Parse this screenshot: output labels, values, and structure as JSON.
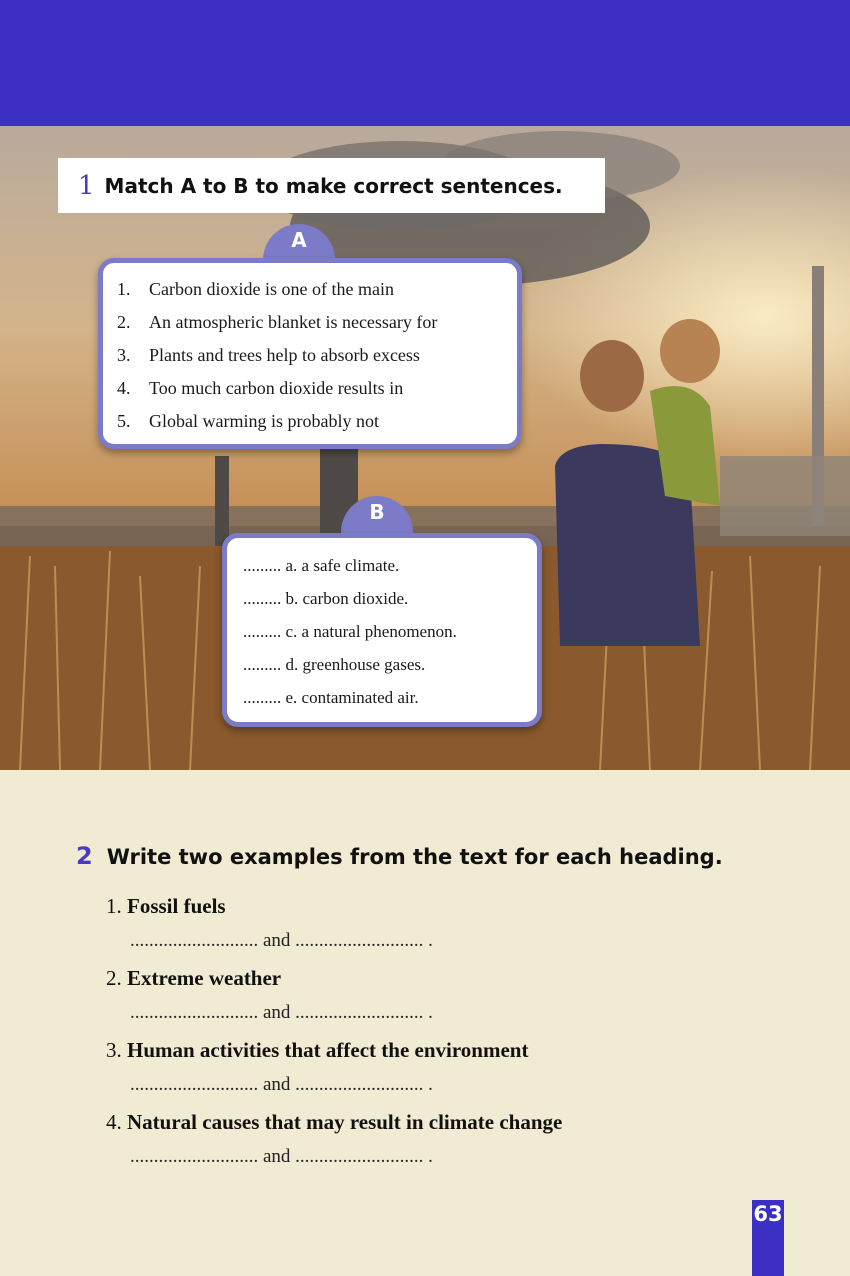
{
  "exercise1": {
    "number": "1",
    "instruction": "Match A to B to make correct sentences.",
    "column_a": {
      "label": "A",
      "items": [
        {
          "num": "1.",
          "text": "Carbon dioxide is one of the main"
        },
        {
          "num": "2.",
          "text": "An atmospheric blanket is necessary for"
        },
        {
          "num": "3.",
          "text": "Plants and trees help to absorb excess"
        },
        {
          "num": "4.",
          "text": "Too much carbon dioxide results in"
        },
        {
          "num": "5.",
          "text": "Global warming is probably not"
        }
      ]
    },
    "column_b": {
      "label": "B",
      "items": [
        {
          "blank": ".........",
          "text": "a. a safe climate."
        },
        {
          "blank": ".........",
          "text": "b. carbon dioxide."
        },
        {
          "blank": ".........",
          "text": "c. a natural phenomenon."
        },
        {
          "blank": ".........",
          "text": "d. greenhouse gases."
        },
        {
          "blank": ".........",
          "text": "e. contaminated air."
        }
      ]
    }
  },
  "exercise2": {
    "number": "2",
    "instruction": "Write two examples from the text for each heading.",
    "items": [
      {
        "num": "1.",
        "heading": "Fossil fuels"
      },
      {
        "num": "2.",
        "heading": "Extreme weather"
      },
      {
        "num": "3.",
        "heading": "Human activities that affect the environment"
      },
      {
        "num": "4.",
        "heading": "Natural causes that may result in climate change"
      }
    ],
    "answer_line": "........................... and ........................... ."
  },
  "page_number": "63",
  "colors": {
    "header_band": "#3b2fc4",
    "box_border": "#7b7bc8",
    "page_background": "#f0ebd2"
  }
}
